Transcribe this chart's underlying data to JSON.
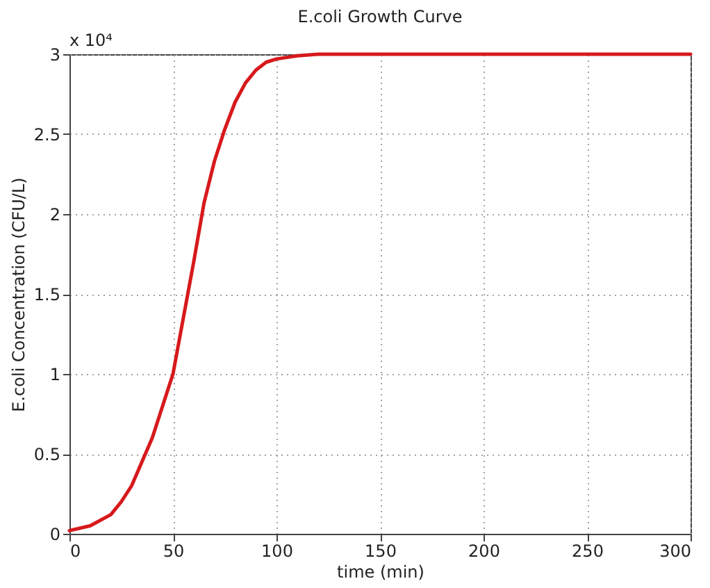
{
  "chart_data": {
    "type": "line",
    "title": "E.coli Growth Curve",
    "xlabel": "time (min)",
    "ylabel": "E.coli Concentration (CFU/L)",
    "annotations": [
      "x 10⁴"
    ],
    "x": [
      0,
      10,
      20,
      25,
      30,
      35,
      40,
      45,
      50,
      55,
      60,
      65,
      70,
      75,
      80,
      85,
      90,
      95,
      100,
      110,
      120,
      150,
      200,
      250,
      300
    ],
    "series": [
      {
        "color": "#d7191c",
        "values": [
          0.02,
          0.05,
          0.12,
          0.2,
          0.3,
          0.45,
          0.6,
          0.8,
          1.0,
          1.35,
          1.7,
          2.07,
          2.33,
          2.53,
          2.7,
          2.82,
          2.9,
          2.95,
          2.97,
          2.99,
          3.0,
          3.0,
          3.0,
          3.0,
          3.0
        ]
      }
    ],
    "xlim": [
      0,
      300
    ],
    "xticks": [
      0,
      50,
      100,
      150,
      200,
      250,
      300
    ],
    "ylim": [
      0,
      3
    ],
    "yticks": [
      0,
      0.5,
      1,
      1.5,
      2,
      2.5,
      3
    ],
    "grid": true,
    "marker": "none",
    "line_style": "solid"
  }
}
